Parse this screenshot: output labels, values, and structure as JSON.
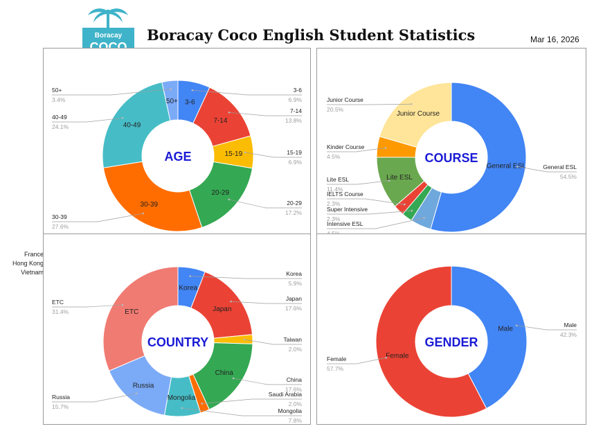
{
  "header": {
    "title": "Boracay Coco English Student Statistics",
    "date": "Mar 16, 2026",
    "logo_text_top": "Boracay",
    "logo_text_main": "COCO",
    "logo_color": "#3fb3c9"
  },
  "side_notes": [
    "France",
    "Hong Kong",
    "Vietnam"
  ],
  "chart_data": [
    {
      "type": "pie",
      "center_label": "AGE",
      "center_label_color": "#1a1ad6",
      "categories": [
        "3-6",
        "7-14",
        "15-19",
        "20-29",
        "30-39",
        "40-49",
        "50+"
      ],
      "values": [
        6.9,
        13.8,
        6.9,
        17.2,
        27.6,
        24.1,
        3.4
      ],
      "value_labels": [
        "6.9%",
        "13.8%",
        "6.9%",
        "17.2%",
        "27.6%",
        "24.1%",
        "3.4%"
      ],
      "colors": [
        "#4285f4",
        "#ea4335",
        "#fbbc04",
        "#34a853",
        "#ff6d01",
        "#46bdc6",
        "#7baaf7"
      ]
    },
    {
      "type": "pie",
      "center_label": "COURSE",
      "center_label_color": "#1a1ad6",
      "categories": [
        "General ESL",
        "Intensive ESL",
        "Super Intensive",
        "IELTS Course",
        "Lite ESL",
        "Kinder Course",
        "Junior Course"
      ],
      "values": [
        54.5,
        4.5,
        2.3,
        2.3,
        11.4,
        4.5,
        20.5
      ],
      "value_labels": [
        "54.5%",
        "4.5%",
        "2.3%",
        "2.3%",
        "11.4%",
        "4.5%",
        "20.5%"
      ],
      "slice_labels": [
        "General ESL",
        "",
        "",
        "",
        "Lite ESL",
        "",
        "Junior Course"
      ],
      "colors": [
        "#4285f4",
        "#6fa8dc",
        "#34a853",
        "#ea4335",
        "#6aa84f",
        "#ff9900",
        "#ffe599"
      ]
    },
    {
      "type": "pie",
      "center_label": "COUNTRY",
      "center_label_color": "#1a1ad6",
      "categories": [
        "Korea",
        "Japan",
        "Taiwan",
        "China",
        "Saudi Arabia",
        "Mongolia",
        "Russia",
        "ETC"
      ],
      "values": [
        5.9,
        17.6,
        2.0,
        17.6,
        2.0,
        7.8,
        15.7,
        31.4
      ],
      "value_labels": [
        "5.9%",
        "17.6%",
        "2.0%",
        "17.6%",
        "2.0%",
        "7.8%",
        "15.7%",
        "31.4%"
      ],
      "slice_labels": [
        "Korea",
        "Japan",
        "",
        "China",
        "",
        "Mongolia",
        "Russia",
        "ETC"
      ],
      "colors": [
        "#4285f4",
        "#ea4335",
        "#fbbc04",
        "#34a853",
        "#ff6d01",
        "#46bdc6",
        "#7baaf7",
        "#f07b72"
      ]
    },
    {
      "type": "pie",
      "center_label": "GENDER",
      "center_label_color": "#1a1ad6",
      "categories": [
        "Male",
        "Female"
      ],
      "values": [
        42.3,
        57.7
      ],
      "value_labels": [
        "42.3%",
        "57.7%"
      ],
      "colors": [
        "#4285f4",
        "#ea4335"
      ]
    }
  ]
}
